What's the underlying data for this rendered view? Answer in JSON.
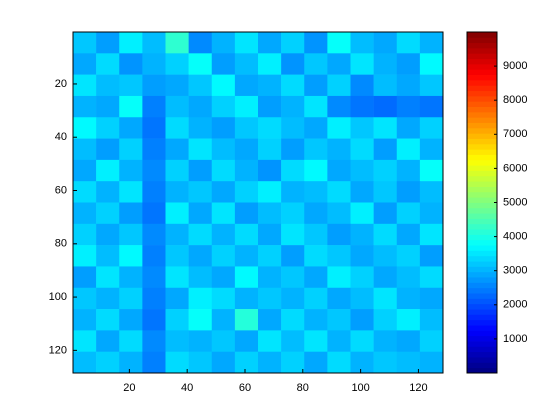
{
  "chart_data": {
    "type": "heatmap",
    "colormap": "jet",
    "x": [
      4.5,
      12.5,
      20.5,
      28.5,
      36.5,
      44.5,
      52.5,
      60.5,
      68.5,
      76.5,
      84.5,
      92.5,
      100.5,
      108.5,
      116.5,
      124.5
    ],
    "y": [
      4.5,
      12.5,
      20.5,
      28.5,
      36.5,
      44.5,
      52.5,
      60.5,
      68.5,
      76.5,
      84.5,
      92.5,
      100.5,
      108.5,
      116.5,
      124.5
    ],
    "z": [
      [
        3200,
        2800,
        3600,
        3100,
        4200,
        2600,
        3000,
        3500,
        2900,
        3300,
        2700,
        3800,
        3100,
        2900,
        3400,
        3000
      ],
      [
        2900,
        3400,
        2700,
        3000,
        3300,
        3800,
        2800,
        3100,
        3600,
        2700,
        3200,
        2900,
        3500,
        3000,
        2800,
        3700
      ],
      [
        3500,
        3100,
        3200,
        2800,
        2900,
        3200,
        3700,
        2900,
        3000,
        3400,
        2800,
        3300,
        2600,
        3100,
        2900,
        3200
      ],
      [
        3000,
        2900,
        3800,
        2500,
        3100,
        2900,
        3300,
        3600,
        2800,
        3000,
        3500,
        2600,
        2400,
        2300,
        2500,
        2400
      ],
      [
        3700,
        3300,
        2900,
        2400,
        3400,
        3000,
        2800,
        3200,
        3400,
        3100,
        2900,
        3600,
        3200,
        3500,
        2900,
        3300
      ],
      [
        3100,
        2800,
        3300,
        2500,
        2900,
        3500,
        3100,
        2900,
        3300,
        2800,
        3200,
        3000,
        3400,
        2800,
        3600,
        3000
      ],
      [
        2900,
        3600,
        3000,
        2600,
        3300,
        2800,
        3400,
        3000,
        2700,
        3400,
        3700,
        2900,
        3100,
        3300,
        3000,
        3800
      ],
      [
        3400,
        3000,
        3500,
        2500,
        3000,
        3200,
        2900,
        3300,
        3600,
        3000,
        3100,
        3400,
        2900,
        3200,
        2800,
        3100
      ],
      [
        3000,
        3300,
        2800,
        2400,
        3600,
        2900,
        3500,
        2800,
        3100,
        3300,
        2900,
        3100,
        3600,
        2800,
        3300,
        3000
      ],
      [
        3300,
        2900,
        3200,
        2600,
        3000,
        3400,
        3000,
        3400,
        2900,
        3500,
        3200,
        2800,
        3000,
        3400,
        2900,
        3500
      ],
      [
        3600,
        3100,
        3700,
        2500,
        3200,
        2900,
        3300,
        3000,
        3300,
        2800,
        3400,
        3200,
        2900,
        3100,
        3300,
        2800
      ],
      [
        2800,
        3500,
        3000,
        2600,
        3500,
        3100,
        2900,
        3700,
        3000,
        3200,
        2900,
        3600,
        3300,
        2900,
        3100,
        3400
      ],
      [
        3200,
        3000,
        3300,
        2500,
        2900,
        3600,
        3400,
        3000,
        3200,
        3000,
        3300,
        2900,
        3100,
        3500,
        3000,
        2900
      ],
      [
        3000,
        3400,
        2900,
        2400,
        3300,
        3800,
        3000,
        4100,
        2900,
        3400,
        3000,
        3200,
        2800,
        3300,
        3600,
        3100
      ],
      [
        3500,
        2900,
        3400,
        2600,
        3100,
        3000,
        3200,
        2900,
        3500,
        3100,
        3500,
        3000,
        3400,
        3000,
        2900,
        3300
      ],
      [
        3100,
        3300,
        3000,
        2500,
        3400,
        3200,
        2900,
        3300,
        3000,
        3300,
        2900,
        3400,
        3000,
        3200,
        3100,
        3000
      ]
    ],
    "xlim": [
      0.5,
      128.5
    ],
    "ylim": [
      0.5,
      128.5
    ],
    "y_reversed": true,
    "xticks": [
      20,
      40,
      60,
      80,
      100,
      120
    ],
    "yticks": [
      20,
      40,
      60,
      80,
      100,
      120
    ],
    "clim": [
      0,
      10000
    ],
    "cticks": [
      1000,
      2000,
      3000,
      4000,
      5000,
      6000,
      7000,
      8000,
      9000
    ]
  }
}
